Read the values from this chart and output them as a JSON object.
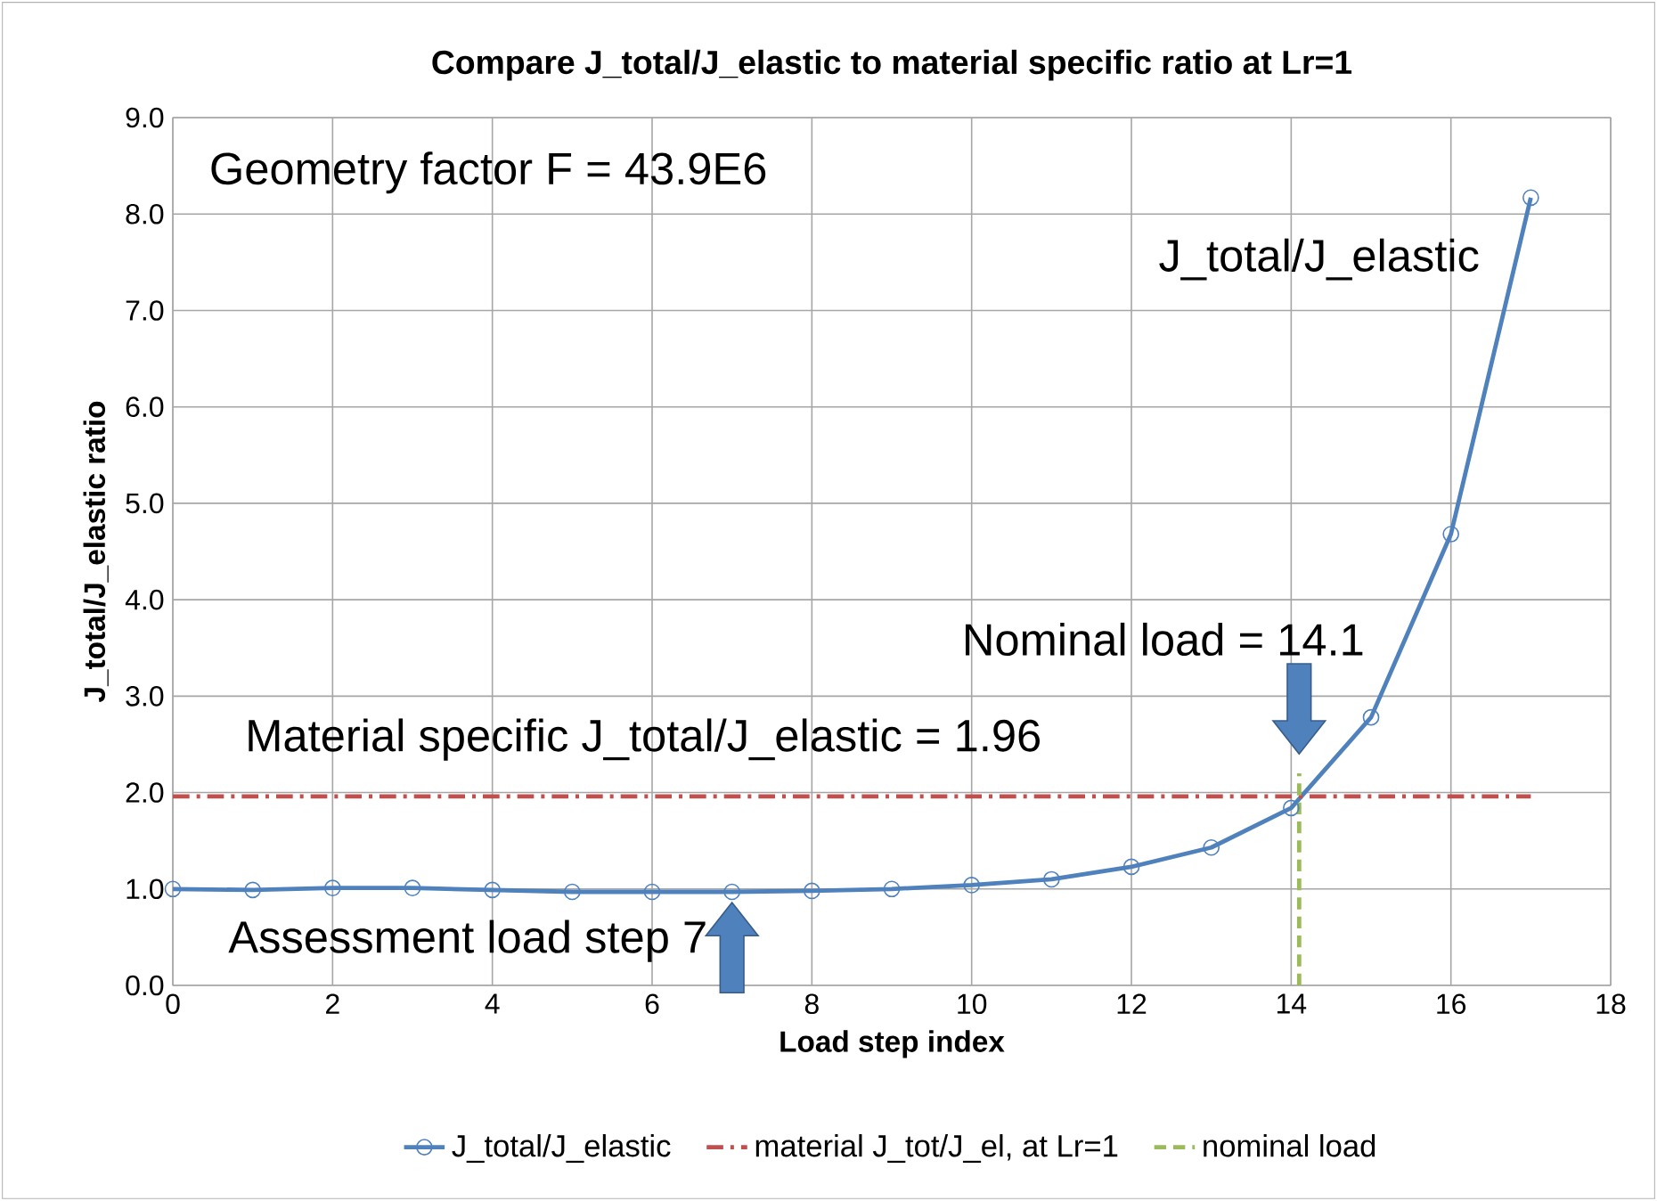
{
  "chart_data": {
    "type": "line",
    "title": "Compare J_total/J_elastic to material specific ratio at Lr=1",
    "xlabel": "Load step index",
    "ylabel": "J_total/J_elastic ratio",
    "x": [
      0,
      1,
      2,
      3,
      4,
      5,
      6,
      7,
      8,
      9,
      10,
      11,
      12,
      13,
      14,
      15,
      16,
      17
    ],
    "series": [
      {
        "name": "J_total/J_elastic",
        "color": "#4f81bd",
        "values": [
          1.0,
          0.99,
          1.01,
          1.01,
          0.99,
          0.97,
          0.97,
          0.97,
          0.98,
          1.0,
          1.04,
          1.1,
          1.23,
          1.43,
          1.84,
          2.78,
          4.68,
          8.17
        ]
      },
      {
        "name": "material J_tot/J_el, at Lr=1",
        "color": "#c0504d",
        "x": [
          0,
          17
        ],
        "values": [
          1.96,
          1.96
        ],
        "line_style": "dashdot",
        "marker": "none"
      },
      {
        "name": "nominal load",
        "color": "#9bbb59",
        "x": [
          14.1,
          14.1
        ],
        "values": [
          0,
          2.2
        ],
        "line_style": "dashed",
        "marker": "none"
      }
    ],
    "xlim": [
      0,
      18
    ],
    "xticks": [
      0,
      2,
      4,
      6,
      8,
      10,
      12,
      14,
      16,
      18
    ],
    "ylim": [
      0,
      9
    ],
    "yticks": [
      {
        "value": 0,
        "label": "0.0"
      },
      {
        "value": 1,
        "label": "1.0"
      },
      {
        "value": 2,
        "label": "2.0"
      },
      {
        "value": 3,
        "label": "3.0"
      },
      {
        "value": 4,
        "label": "4.0"
      },
      {
        "value": 5,
        "label": "5.0"
      },
      {
        "value": 6,
        "label": "6.0"
      },
      {
        "value": 7,
        "label": "7.0"
      },
      {
        "value": 8,
        "label": "8.0"
      },
      {
        "value": 9,
        "label": "9.0"
      }
    ],
    "annotations": [
      "Geometry factor F = 43.9E6",
      "J_total/J_elastic",
      "Material specific J_total/J_elastic = 1.96",
      "Nominal load = 14.1",
      "Assessment load step 7"
    ],
    "grid": true,
    "legend": "bottom",
    "marker": "circle",
    "line_style": "solid"
  }
}
